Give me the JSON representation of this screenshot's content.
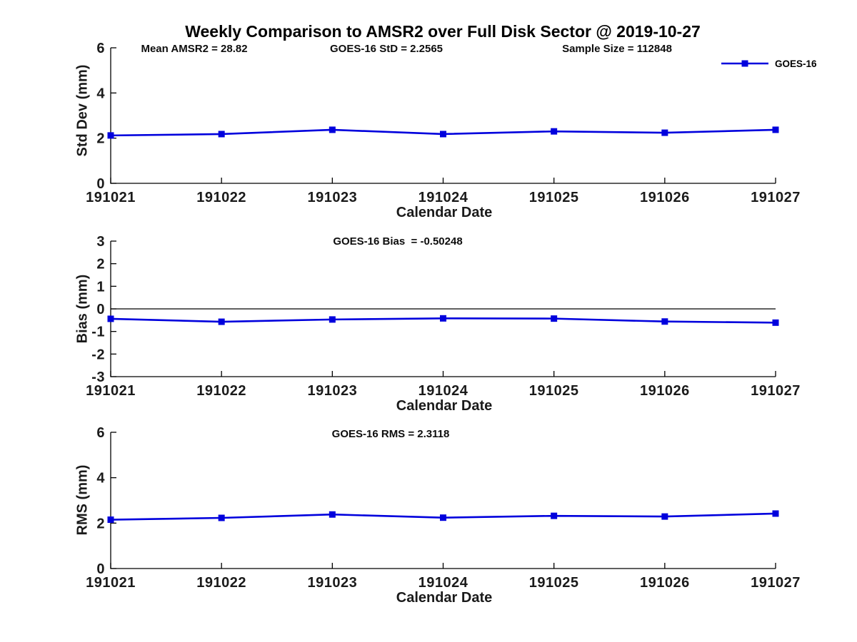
{
  "title": "Weekly Comparison to AMSR2 over Full Disk Sector @ 2019-10-27",
  "colors": {
    "line": "#0000dd",
    "axis": "#000000"
  },
  "chart_data": [
    {
      "type": "line",
      "panel": "std-dev",
      "categories": [
        "191021",
        "191022",
        "191023",
        "191024",
        "191025",
        "191026",
        "191027"
      ],
      "series": [
        {
          "name": "GOES-16",
          "values": [
            2.12,
            2.18,
            2.37,
            2.18,
            2.3,
            2.24,
            2.37
          ]
        }
      ],
      "xlabel": "Calendar Date",
      "ylabel": "Std Dev (mm)",
      "ylim": [
        0,
        6
      ],
      "yticks": [
        0,
        2,
        4,
        6
      ],
      "grid": false,
      "zero_line": false,
      "marker": "square",
      "line_color": "#0000dd",
      "annotations": [
        "Mean AMSR2 = 28.82",
        "GOES-16 StD = 2.2565",
        "Sample Size = 112848"
      ],
      "legend": {
        "label": "GOES-16",
        "position": "top-right"
      }
    },
    {
      "type": "line",
      "panel": "bias",
      "categories": [
        "191021",
        "191022",
        "191023",
        "191024",
        "191025",
        "191026",
        "191027"
      ],
      "series": [
        {
          "name": "GOES-16",
          "values": [
            -0.44,
            -0.57,
            -0.47,
            -0.42,
            -0.43,
            -0.56,
            -0.61
          ]
        }
      ],
      "xlabel": "Calendar Date",
      "ylabel": "Bias (mm)",
      "ylim": [
        -3,
        3
      ],
      "yticks": [
        -3,
        -2,
        -1,
        0,
        1,
        2,
        3
      ],
      "grid": false,
      "zero_line": true,
      "marker": "square",
      "line_color": "#0000dd",
      "annotations": [
        "GOES-16 Bias  = -0.50248"
      ]
    },
    {
      "type": "line",
      "panel": "rms",
      "categories": [
        "191021",
        "191022",
        "191023",
        "191024",
        "191025",
        "191026",
        "191027"
      ],
      "series": [
        {
          "name": "GOES-16",
          "values": [
            2.15,
            2.23,
            2.38,
            2.24,
            2.32,
            2.29,
            2.42
          ]
        }
      ],
      "xlabel": "Calendar Date",
      "ylabel": "RMS (mm)",
      "ylim": [
        0,
        6
      ],
      "yticks": [
        0,
        2,
        4,
        6
      ],
      "grid": false,
      "zero_line": false,
      "marker": "square",
      "line_color": "#0000dd",
      "annotations": [
        "GOES-16 RMS = 2.3118"
      ]
    }
  ]
}
